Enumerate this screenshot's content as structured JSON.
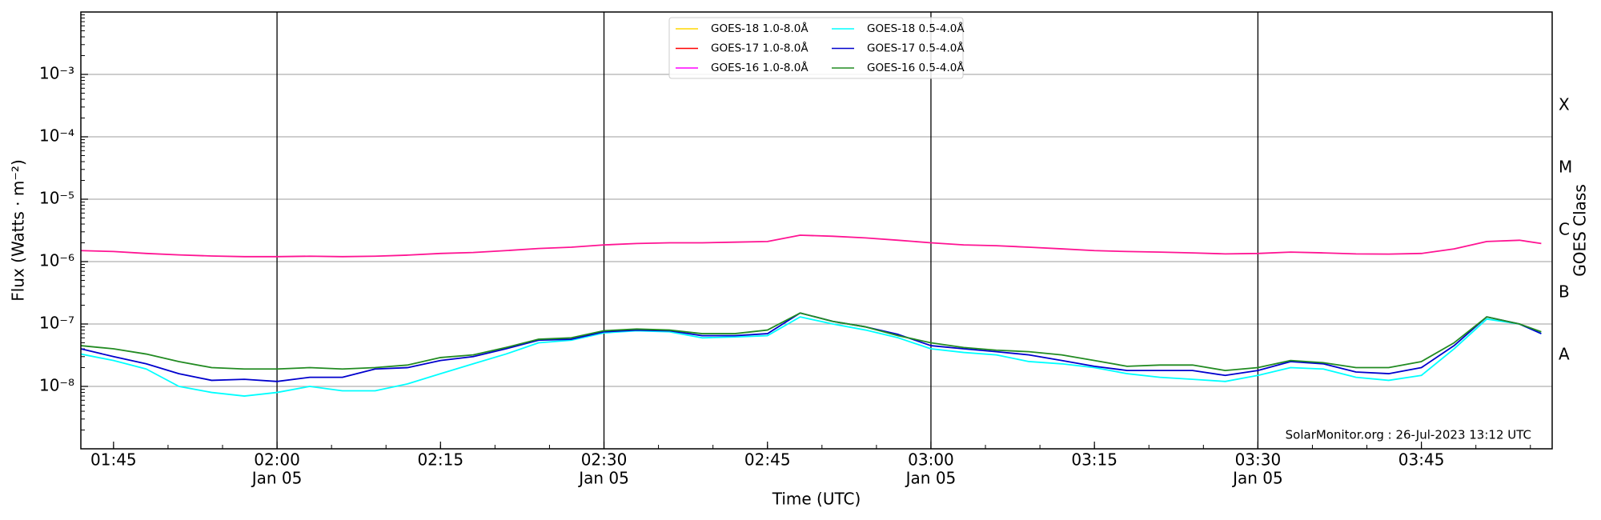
{
  "chart_data": {
    "type": "line",
    "xlabel": "Time (UTC)",
    "ylabel": "Flux (Watts · m⁻²)",
    "y2label": "GOES Class",
    "annotation": "SolarMonitor.org : 26-Jul-2023 13:12 UTC",
    "yscale": "log",
    "grid": true,
    "legend": "upper center",
    "x": [
      "01:42",
      "01:45",
      "01:48",
      "01:51",
      "01:54",
      "01:57",
      "02:00",
      "02:03",
      "02:06",
      "02:09",
      "02:12",
      "02:15",
      "02:18",
      "02:21",
      "02:24",
      "02:27",
      "02:30",
      "02:33",
      "02:36",
      "02:39",
      "02:42",
      "02:45",
      "02:48",
      "02:51",
      "02:54",
      "02:57",
      "03:00",
      "03:03",
      "03:06",
      "03:09",
      "03:12",
      "03:15",
      "03:18",
      "03:21",
      "03:24",
      "03:27",
      "03:30",
      "03:33",
      "03:36",
      "03:39",
      "03:42",
      "03:45",
      "03:48",
      "03:51",
      "03:54",
      "03:56"
    ],
    "xlim": [
      "01:42",
      "03:57"
    ],
    "xticks": [
      {
        "value": "01:45"
      },
      {
        "value": "02:00",
        "date": "Jan 05"
      },
      {
        "value": "02:15"
      },
      {
        "value": "02:30",
        "date": "Jan 05"
      },
      {
        "value": "02:45"
      },
      {
        "value": "03:00",
        "date": "Jan 05"
      },
      {
        "value": "03:15"
      },
      {
        "value": "03:30",
        "date": "Jan 05"
      },
      {
        "value": "03:45"
      }
    ],
    "ylim": [
      1e-09,
      0.01
    ],
    "yticks": [
      {
        "value": 1e-08,
        "label": "10⁻⁸"
      },
      {
        "value": 1e-07,
        "label": "10⁻⁷"
      },
      {
        "value": 1e-06,
        "label": "10⁻⁶"
      },
      {
        "value": 1e-05,
        "label": "10⁻⁵"
      },
      {
        "value": 0.0001,
        "label": "10⁻⁴"
      },
      {
        "value": 0.001,
        "label": "10⁻³"
      }
    ],
    "y2lim": [
      1e-09,
      0.01
    ],
    "y2ticks": [
      {
        "value": 3.16e-08,
        "label": "A"
      },
      {
        "value": 3.16e-07,
        "label": "B"
      },
      {
        "value": 3.16e-06,
        "label": "C"
      },
      {
        "value": 3.16e-05,
        "label": "M"
      },
      {
        "value": 0.000316,
        "label": "X"
      }
    ],
    "series": [
      {
        "name": "GOES-18 1.0-8.0Å",
        "color": "#ffd700",
        "values": [
          null,
          null,
          null,
          null,
          null,
          null,
          null,
          null,
          null,
          null,
          null,
          null,
          null,
          null,
          null,
          null,
          null,
          null,
          null,
          null,
          null,
          null,
          null,
          null,
          null,
          null,
          null,
          null,
          null,
          null,
          null,
          null,
          null,
          null,
          null,
          null,
          null,
          null,
          null,
          null,
          null,
          null,
          null,
          null,
          null,
          null
        ]
      },
      {
        "name": "GOES-17 1.0-8.0Å",
        "color": "#ff0000",
        "values": [
          null,
          null,
          null,
          null,
          null,
          null,
          null,
          null,
          null,
          null,
          null,
          null,
          null,
          null,
          null,
          null,
          null,
          null,
          null,
          null,
          null,
          null,
          null,
          null,
          null,
          null,
          null,
          null,
          null,
          null,
          null,
          null,
          null,
          null,
          null,
          null,
          null,
          null,
          null,
          null,
          null,
          null,
          null,
          null,
          null,
          null
        ]
      },
      {
        "name": "GOES-16 1.0-8.0Å",
        "color": "#ff00ff",
        "line_color": "#ff1493",
        "values": [
          1.5e-06,
          1.45e-06,
          1.35e-06,
          1.28e-06,
          1.23e-06,
          1.2e-06,
          1.2e-06,
          1.22e-06,
          1.2e-06,
          1.22e-06,
          1.27e-06,
          1.35e-06,
          1.4e-06,
          1.5e-06,
          1.62e-06,
          1.7e-06,
          1.85e-06,
          1.95e-06,
          2e-06,
          2e-06,
          2.05e-06,
          2.1e-06,
          2.65e-06,
          2.55e-06,
          2.4e-06,
          2.2e-06,
          2e-06,
          1.85e-06,
          1.8e-06,
          1.7e-06,
          1.6e-06,
          1.5e-06,
          1.45e-06,
          1.42e-06,
          1.38e-06,
          1.33e-06,
          1.35e-06,
          1.42e-06,
          1.38e-06,
          1.33e-06,
          1.32e-06,
          1.35e-06,
          1.6e-06,
          2.1e-06,
          2.2e-06,
          1.95e-06
        ]
      },
      {
        "name": "GOES-18 0.5-4.0Å",
        "color": "#00ffff",
        "values": [
          3.3e-08,
          2.6e-08,
          1.9e-08,
          1e-08,
          8e-09,
          7e-09,
          8e-09,
          1e-08,
          8.5e-09,
          8.5e-09,
          1.1e-08,
          1.6e-08,
          2.3e-08,
          3.3e-08,
          5e-08,
          5.5e-08,
          7.2e-08,
          7.8e-08,
          7.5e-08,
          6e-08,
          6.2e-08,
          6.5e-08,
          1.3e-07,
          1e-07,
          8e-08,
          6e-08,
          4e-08,
          3.5e-08,
          3.2e-08,
          2.5e-08,
          2.3e-08,
          2e-08,
          1.6e-08,
          1.4e-08,
          1.3e-08,
          1.2e-08,
          1.5e-08,
          2e-08,
          1.9e-08,
          1.4e-08,
          1.25e-08,
          1.5e-08,
          4e-08,
          1.2e-07,
          1e-07,
          7e-08
        ]
      },
      {
        "name": "GOES-17 0.5-4.0Å",
        "color": "#0000cd",
        "values": [
          4e-08,
          3e-08,
          2.3e-08,
          1.6e-08,
          1.25e-08,
          1.3e-08,
          1.2e-08,
          1.4e-08,
          1.4e-08,
          1.9e-08,
          2e-08,
          2.6e-08,
          3e-08,
          4e-08,
          5.5e-08,
          5.7e-08,
          7.5e-08,
          8e-08,
          7.8e-08,
          6.5e-08,
          6.5e-08,
          7e-08,
          1.5e-07,
          1.1e-07,
          9e-08,
          6.8e-08,
          4.5e-08,
          4e-08,
          3.6e-08,
          3.2e-08,
          2.6e-08,
          2.1e-08,
          1.8e-08,
          1.8e-08,
          1.8e-08,
          1.5e-08,
          1.8e-08,
          2.5e-08,
          2.3e-08,
          1.7e-08,
          1.6e-08,
          2e-08,
          4.5e-08,
          1.3e-07,
          1e-07,
          7e-08
        ]
      },
      {
        "name": "GOES-16 0.5-4.0Å",
        "color": "#228b22",
        "values": [
          4.5e-08,
          4e-08,
          3.3e-08,
          2.5e-08,
          2e-08,
          1.9e-08,
          1.9e-08,
          2e-08,
          1.9e-08,
          2e-08,
          2.2e-08,
          2.9e-08,
          3.2e-08,
          4.2e-08,
          5.7e-08,
          6e-08,
          7.8e-08,
          8.3e-08,
          8e-08,
          7e-08,
          7e-08,
          8e-08,
          1.5e-07,
          1.1e-07,
          9e-08,
          6.5e-08,
          5e-08,
          4.2e-08,
          3.8e-08,
          3.6e-08,
          3.2e-08,
          2.6e-08,
          2.1e-08,
          2.2e-08,
          2.2e-08,
          1.8e-08,
          2e-08,
          2.6e-08,
          2.4e-08,
          2e-08,
          2e-08,
          2.5e-08,
          5e-08,
          1.3e-07,
          1e-07,
          7.5e-08
        ]
      }
    ]
  }
}
